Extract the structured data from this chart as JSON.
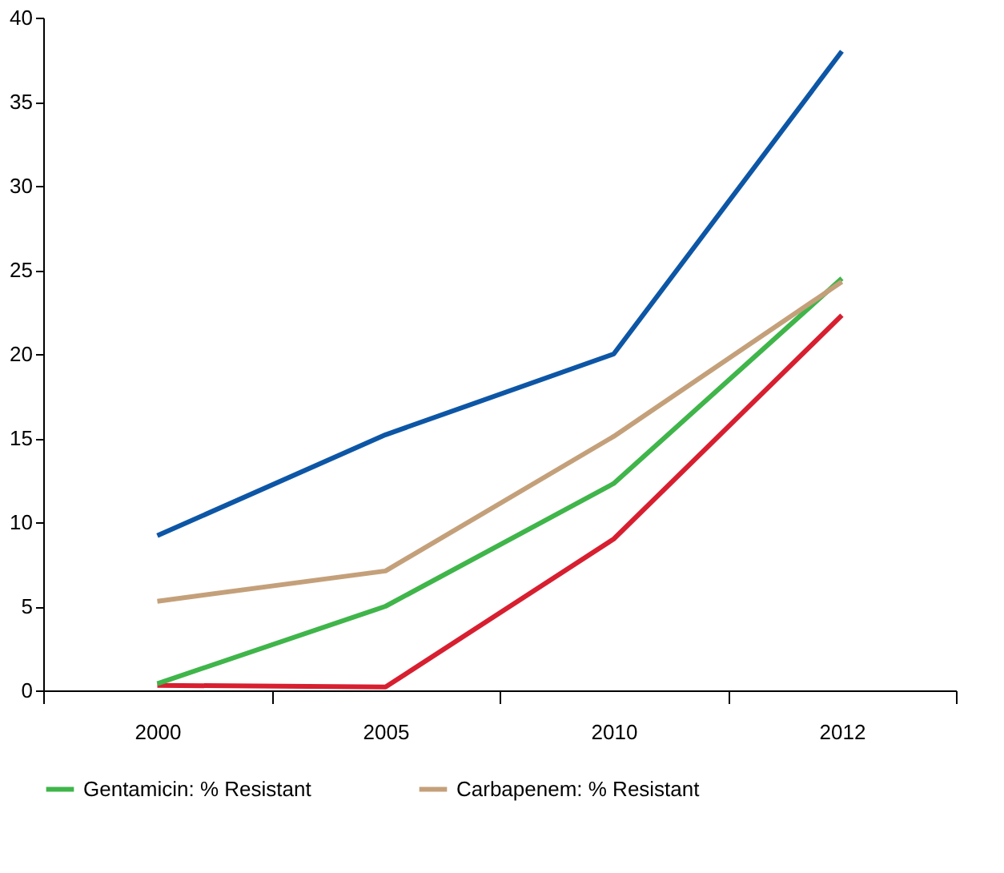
{
  "chart_data": {
    "type": "line",
    "categories": [
      "2000",
      "2005",
      "2010",
      "2012"
    ],
    "series": [
      {
        "color": "#0d56a6",
        "values": [
          9.2,
          15.2,
          20,
          38
        ]
      },
      {
        "color": "#d71f30",
        "values": [
          0.3,
          0.2,
          9,
          22.3
        ]
      },
      {
        "name": "Gentamicin: % Resistant",
        "color": "#3fb54a",
        "values": [
          0.4,
          5,
          12.3,
          24.5
        ]
      },
      {
        "name": "Carbapenem: % Resistant",
        "color": "#c4a07a",
        "values": [
          5.3,
          7.1,
          15.1,
          24.3
        ]
      }
    ],
    "ylim": [
      0,
      40
    ],
    "yticks": [
      0,
      5,
      10,
      15,
      20,
      25,
      30,
      35,
      40
    ],
    "grid": false,
    "legend": "bottom",
    "marker": "none",
    "line_style": "solid"
  }
}
